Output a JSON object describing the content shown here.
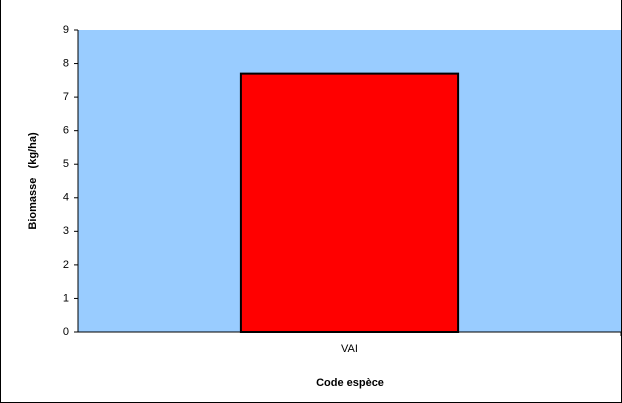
{
  "chart_data": {
    "type": "bar",
    "x_label": "Code espèce",
    "y_label": "Biomasse   (kg/ha)",
    "categories": [
      "VAI"
    ],
    "values": [
      7.7
    ],
    "color": "#ff0000",
    "ylim": [
      0,
      9
    ],
    "yticks": [
      0,
      1,
      2,
      3,
      4,
      5,
      6,
      7,
      8,
      9
    ]
  }
}
